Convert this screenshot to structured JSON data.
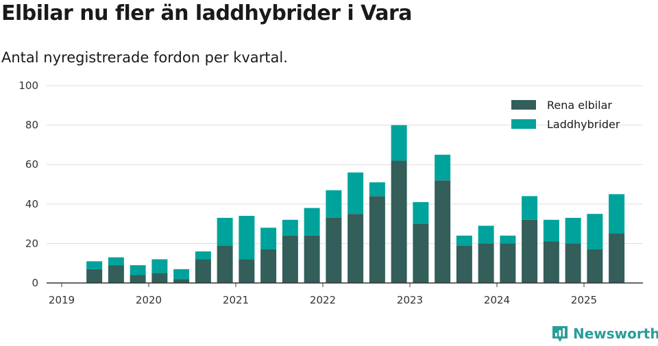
{
  "title": "Elbilar nu fler än laddhybrider i Vara",
  "subtitle": "Antal nyregistrerade fordon per kvartal.",
  "brand": "Newsworthy",
  "chart_data": {
    "type": "bar",
    "stacked": true,
    "ylim": [
      0,
      100
    ],
    "yticks": [
      0,
      20,
      40,
      60,
      80,
      100
    ],
    "xticks": [
      "2019",
      "2020",
      "2021",
      "2022",
      "2023",
      "2024",
      "2025"
    ],
    "categories": [
      "2019 Q2",
      "2019 Q3",
      "2019 Q4",
      "2020 Q1",
      "2020 Q2",
      "2020 Q3",
      "2020 Q4",
      "2021 Q1",
      "2021 Q2",
      "2021 Q3",
      "2021 Q4",
      "2022 Q1",
      "2022 Q2",
      "2022 Q3",
      "2022 Q4",
      "2023 Q1",
      "2023 Q2",
      "2023 Q3",
      "2023 Q4",
      "2024 Q1",
      "2024 Q2",
      "2024 Q3",
      "2024 Q4",
      "2025 Q1",
      "2025 Q2"
    ],
    "series": [
      {
        "name": "Rena elbilar",
        "color": "#335e5a",
        "values": [
          7,
          9,
          4,
          5,
          2,
          12,
          19,
          12,
          17,
          24,
          24,
          33,
          35,
          44,
          62,
          30,
          52,
          19,
          20,
          20,
          32,
          21,
          20,
          17,
          25
        ]
      },
      {
        "name": "Laddhybrider",
        "color": "#00a39b",
        "values": [
          4,
          4,
          5,
          7,
          5,
          4,
          14,
          22,
          11,
          8,
          14,
          14,
          21,
          7,
          18,
          11,
          13,
          5,
          9,
          4,
          12,
          11,
          13,
          18,
          20
        ]
      }
    ],
    "grid": true,
    "legend_position": "top-right"
  }
}
